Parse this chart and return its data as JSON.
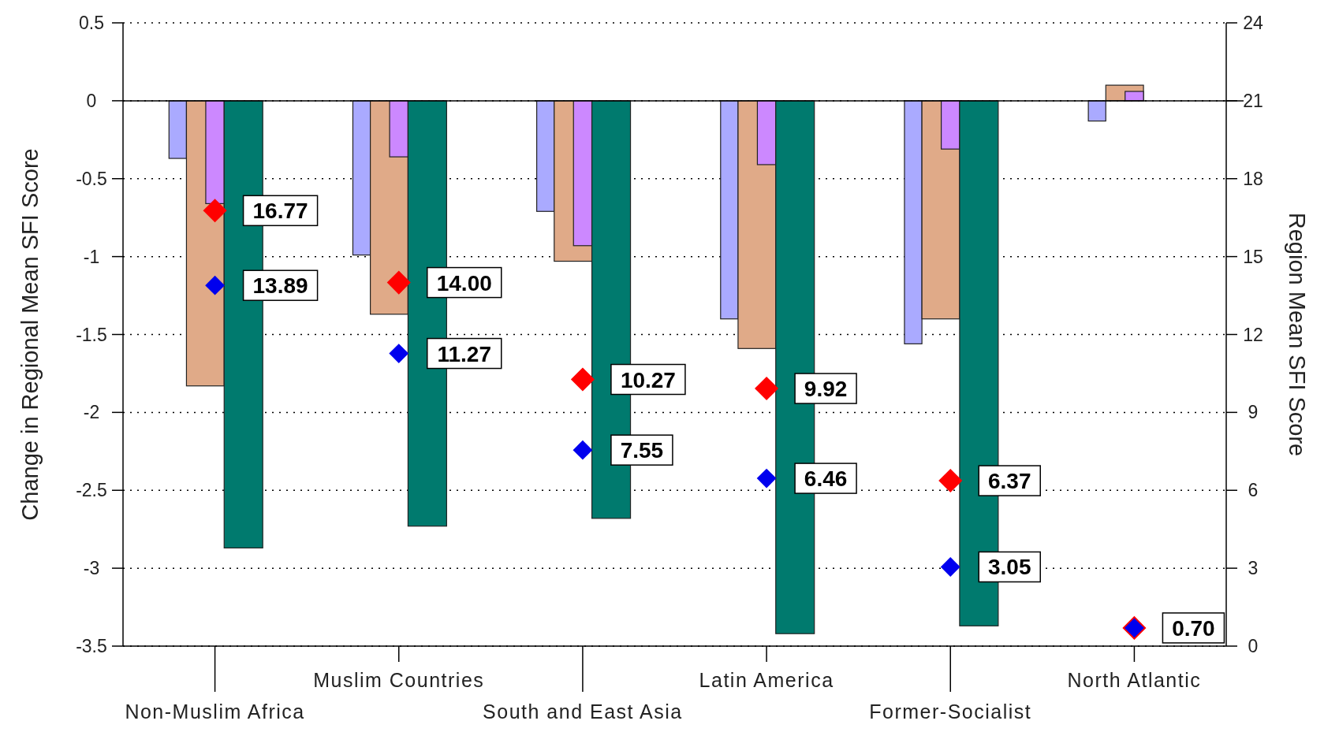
{
  "chart_data": {
    "type": "bar",
    "ylabel": "Change in Regional Mean SFI Score",
    "y2label": "Region Mean SFI Score",
    "categories": [
      "Non-Muslim Africa",
      "Muslim Countries",
      "South and East Asia",
      "Latin America",
      "Former-Socialist",
      "North Atlantic"
    ],
    "series": [
      {
        "color": "#aaaaff",
        "values": [
          -0.37,
          -0.99,
          -0.71,
          -1.4,
          -1.56,
          -0.13
        ]
      },
      {
        "color": "#e0aa88",
        "values": [
          -1.83,
          -1.37,
          -1.03,
          -1.59,
          -1.4,
          0.1
        ]
      },
      {
        "color": "#cc88ff",
        "values": [
          -0.66,
          -0.36,
          -0.93,
          -0.41,
          -0.31,
          0.06
        ]
      },
      {
        "color": "#007a6e",
        "values": [
          -2.87,
          -2.73,
          -2.68,
          -3.42,
          -3.37,
          null
        ]
      },
      {
        "type": "scatter",
        "axis": "y2",
        "color": "#ff0000",
        "marker": "diamond",
        "values": [
          16.77,
          14.0,
          10.27,
          9.92,
          6.37,
          0.7
        ],
        "value_labels": [
          "16.77",
          "14.00",
          "10.27",
          "9.92",
          "6.37",
          null
        ]
      },
      {
        "type": "scatter",
        "axis": "y2",
        "color": "#0000ee",
        "marker": "diamond",
        "values": [
          13.89,
          11.27,
          7.55,
          6.46,
          3.05,
          0.7
        ],
        "value_labels": [
          "13.89",
          "11.27",
          "7.55",
          "6.46",
          "3.05",
          "0.70"
        ]
      }
    ],
    "ylim": [
      -3.5,
      0.5
    ],
    "yticks": [
      -3.5,
      -3,
      -2.5,
      -2,
      -1.5,
      -1,
      -0.5,
      0,
      0.5
    ],
    "y2lim": [
      0,
      24
    ],
    "y2ticks": [
      0,
      3,
      6,
      9,
      12,
      15,
      18,
      21,
      24
    ],
    "grid": "y"
  }
}
